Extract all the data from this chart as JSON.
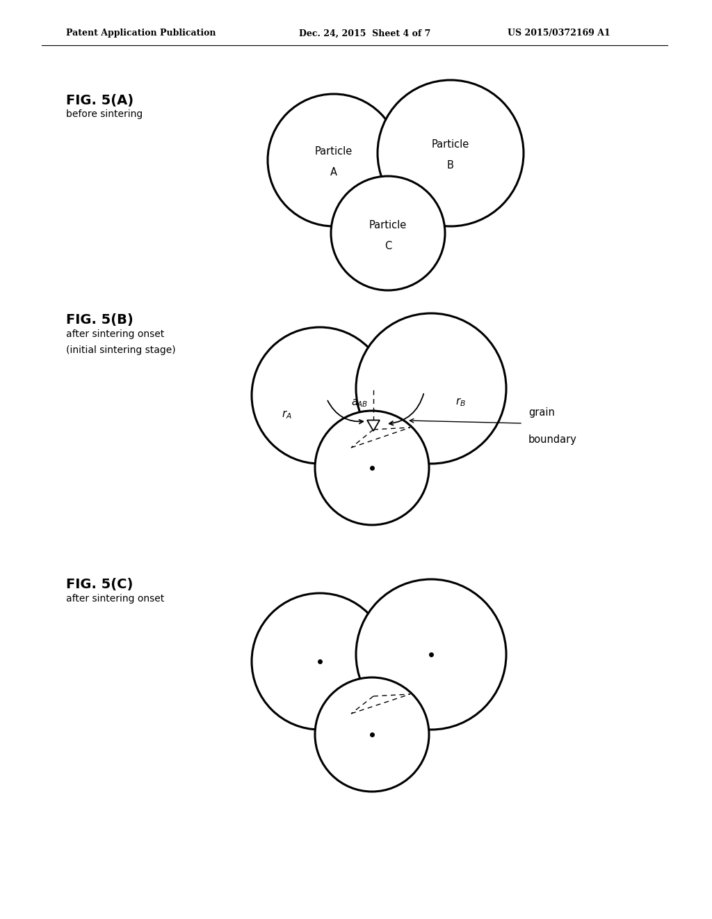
{
  "bg_color": "#ffffff",
  "header_left": "Patent Application Publication",
  "header_mid": "Dec. 24, 2015  Sheet 4 of 7",
  "header_right": "US 2015/0372169 A1",
  "figA_label": "FIG. 5(A)",
  "figA_sublabel": "before sintering",
  "figB_label": "FIG. 5(B)",
  "figB_sublabel1": "after sintering onset",
  "figB_sublabel2": "(initial sintering stage)",
  "figC_label": "FIG. 5(C)",
  "figC_sublabel": "after sintering onset",
  "circle_lw": 2.2,
  "circle_color": "#000000",
  "circle_fill": "#ffffff"
}
